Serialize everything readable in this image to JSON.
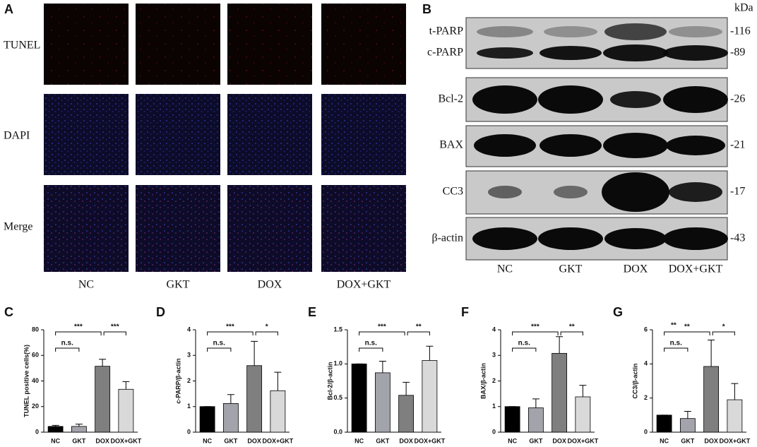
{
  "panel_a": {
    "letter": "A",
    "rows": [
      "TUNEL",
      "DAPI",
      "Merge"
    ],
    "columns": [
      "NC",
      "GKT",
      "DOX",
      "DOX+GKT"
    ]
  },
  "panel_b": {
    "letter": "B",
    "unit": "kDa",
    "proteins": [
      "t-PARP",
      "c-PARP",
      "Bcl-2",
      "BAX",
      "CC3",
      "β-actin"
    ],
    "markers": [
      "-116",
      "-89",
      "-26",
      "-21",
      "-17",
      "-43"
    ],
    "columns": [
      "NC",
      "GKT",
      "DOX",
      "DOX+GKT"
    ]
  },
  "chart_data": [
    {
      "type": "bar",
      "letter": "C",
      "ylabel": "TUNEL positive cells(%)",
      "categories": [
        "NC",
        "GKT",
        "DOX",
        "DOX+GKT"
      ],
      "values": [
        4.5,
        4.5,
        51.5,
        33.5
      ],
      "errors": [
        0.8,
        1.8,
        5.5,
        6
      ],
      "colors": [
        "#000000",
        "#a3a3ab",
        "#7f7f7f",
        "#d9d9d9"
      ],
      "ylim": [
        0,
        80
      ],
      "yticks": [
        0,
        20,
        40,
        60,
        80
      ],
      "significance": [
        "n.s.",
        "***",
        "***"
      ]
    },
    {
      "type": "bar",
      "letter": "D",
      "ylabel": "c-PARP/β-actin",
      "categories": [
        "NC",
        "GKT",
        "DOX",
        "DOX+GKT"
      ],
      "values": [
        1,
        1.12,
        2.6,
        1.62
      ],
      "errors": [
        0,
        0.35,
        0.95,
        0.72
      ],
      "colors": [
        "#000000",
        "#a3a3ab",
        "#7f7f7f",
        "#d9d9d9"
      ],
      "ylim": [
        0,
        4
      ],
      "yticks": [
        0,
        1,
        2,
        3,
        4
      ],
      "significance": [
        "n.s.",
        "***",
        "*"
      ]
    },
    {
      "type": "bar",
      "letter": "E",
      "ylabel": "Bcl-2/β-actin",
      "categories": [
        "NC",
        "GKT",
        "DOX",
        "DOX+GKT"
      ],
      "values": [
        1.0,
        0.87,
        0.54,
        1.05
      ],
      "errors": [
        0,
        0.17,
        0.19,
        0.21
      ],
      "colors": [
        "#000000",
        "#a3a3ab",
        "#7f7f7f",
        "#d9d9d9"
      ],
      "ylim": [
        0,
        1.5
      ],
      "yticks": [
        {
          "value": 0,
          "label": "0.0"
        },
        {
          "value": 0.5,
          "label": "0.5"
        },
        {
          "value": 1,
          "label": "1.0"
        },
        {
          "value": 1.5,
          "label": "1.5"
        }
      ],
      "significance": [
        "n.s.",
        "***",
        "**"
      ]
    },
    {
      "type": "bar",
      "letter": "F",
      "ylabel": "BAX/β-actin",
      "categories": [
        "NC",
        "GKT",
        "DOX",
        "DOX+GKT"
      ],
      "values": [
        1,
        0.95,
        3.08,
        1.38
      ],
      "errors": [
        0,
        0.35,
        0.65,
        0.45
      ],
      "colors": [
        "#000000",
        "#a3a3ab",
        "#7f7f7f",
        "#d9d9d9"
      ],
      "ylim": [
        0,
        4
      ],
      "yticks": [
        0,
        1,
        2,
        3,
        4
      ],
      "significance": [
        "n.s.",
        "***",
        "**"
      ]
    },
    {
      "type": "bar",
      "letter": "G",
      "ylabel": "CC3/β-actin",
      "categories": [
        "NC",
        "GKT",
        "DOX",
        "DOX+GKT"
      ],
      "values": [
        1,
        0.8,
        3.85,
        1.9
      ],
      "errors": [
        0,
        0.42,
        1.55,
        0.95
      ],
      "colors": [
        "#000000",
        "#a3a3ab",
        "#7f7f7f",
        "#d9d9d9"
      ],
      "ylim": [
        0,
        6
      ],
      "yticks": [
        0,
        2,
        4,
        6
      ],
      "significance": [
        "**",
        "n.s.",
        "**",
        "*"
      ]
    }
  ]
}
